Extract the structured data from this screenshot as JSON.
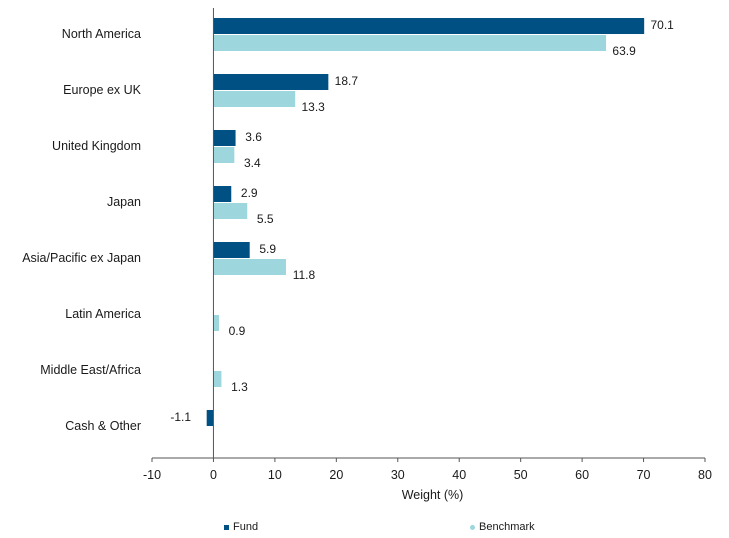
{
  "chart_data": {
    "type": "bar",
    "orientation": "horizontal",
    "categories": [
      "North America",
      "Europe ex UK",
      "United Kingdom",
      "Japan",
      "Asia/Pacific ex Japan",
      "Latin America",
      "Middle East/Africa",
      "Cash & Other"
    ],
    "series": [
      {
        "name": "Fund",
        "color": "#005084",
        "values": [
          70.1,
          18.7,
          3.6,
          2.9,
          5.9,
          null,
          null,
          -1.1
        ],
        "labels": [
          "70.1",
          "18.7",
          "3.6",
          "2.9",
          "5.9",
          "",
          "",
          "-1.1"
        ]
      },
      {
        "name": "Benchmark",
        "color": "#9dd6dd",
        "values": [
          63.9,
          13.3,
          3.4,
          5.5,
          11.8,
          0.9,
          1.3,
          null
        ],
        "labels": [
          "63.9",
          "13.3",
          "3.4",
          "5.5",
          "11.8",
          "0.9",
          "1.3",
          ""
        ]
      }
    ],
    "xlabel": "Weight (%)",
    "xlim": [
      -10,
      80
    ],
    "xticks": [
      -10,
      0,
      10,
      20,
      30,
      40,
      50,
      60,
      70,
      80
    ],
    "grid": false,
    "legend_position": "bottom"
  }
}
